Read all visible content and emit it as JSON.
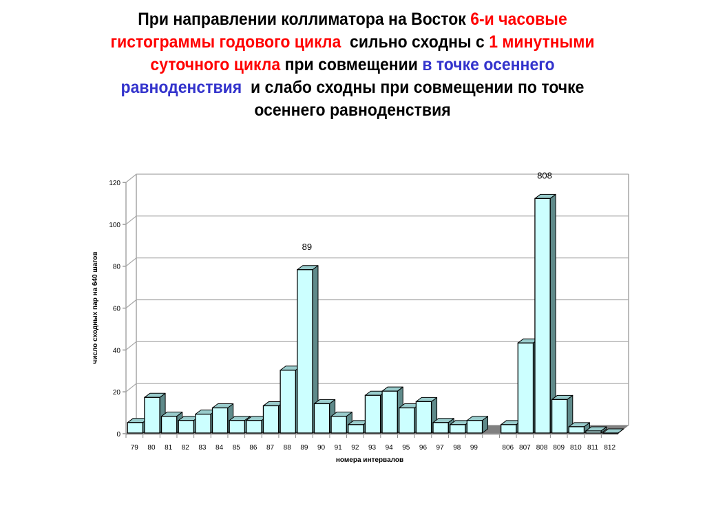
{
  "slide": {
    "title_segments": [
      {
        "text": "При направлении коллиматора на Восток ",
        "color": "black"
      },
      {
        "text": "6-и часовые гистограммы годового цикла",
        "color": "red"
      },
      {
        "text": "  сильно сходны с ",
        "color": "black"
      },
      {
        "text": "1 минутными суточного цикла",
        "color": "red"
      },
      {
        "text": " при совмещении ",
        "color": "black"
      },
      {
        "text": "в точке осеннего равноденствия",
        "color": "blue"
      },
      {
        "text": "  и слабо сходны при совмещении по точке осеннего равноденствия",
        "color": "black"
      }
    ],
    "title_lines": [
      [
        {
          "text": "При направлении коллиматора на Восток ",
          "color": "black"
        },
        {
          "text": "6-и часовые",
          "color": "red"
        }
      ],
      [
        {
          "text": "гистограммы годового цикла",
          "color": "red"
        },
        {
          "text": "  сильно сходны с ",
          "color": "black"
        },
        {
          "text": "1 минутными",
          "color": "red"
        }
      ],
      [
        {
          "text": "суточного цикла",
          "color": "red"
        },
        {
          "text": " при совмещении ",
          "color": "black"
        },
        {
          "text": "в точке осеннего",
          "color": "blue"
        }
      ],
      [
        {
          "text": "равноденствия",
          "color": "blue"
        },
        {
          "text": "  и слабо сходны при совмещении по точке",
          "color": "black"
        }
      ],
      [
        {
          "text": "осеннего равноденствия",
          "color": "black"
        }
      ]
    ]
  },
  "colors": {
    "red": "#ff0000",
    "blue": "#3333cc",
    "black": "#000000",
    "bar_front": "#ccffff",
    "bar_top": "#99cccc",
    "bar_side": "#5f8a8a",
    "floor": "#808080",
    "grid": "#a6a6a6"
  },
  "chart_data": {
    "type": "bar",
    "style": "3d-column",
    "title": "",
    "xlabel": "номера интервалов",
    "ylabel": "число сходных пар на 640 шагов",
    "ylim": [
      0,
      120
    ],
    "yticks": [
      0,
      20,
      40,
      60,
      80,
      100,
      120
    ],
    "grid": true,
    "legend": null,
    "categories": [
      "79",
      "80",
      "81",
      "82",
      "83",
      "84",
      "85",
      "86",
      "87",
      "88",
      "89",
      "90",
      "91",
      "92",
      "93",
      "94",
      "95",
      "96",
      "97",
      "98",
      "99",
      "",
      "806",
      "807",
      "808",
      "809",
      "810",
      "811",
      "812"
    ],
    "values": [
      5,
      17,
      8,
      6,
      9,
      12,
      6,
      6,
      13,
      30,
      78,
      14,
      8,
      4,
      18,
      20,
      12,
      15,
      5,
      4,
      6,
      null,
      4,
      43,
      112,
      16,
      3,
      1,
      0
    ],
    "annotations": [
      {
        "text": "89",
        "category": "89"
      },
      {
        "text": "808",
        "category": "808"
      }
    ]
  }
}
